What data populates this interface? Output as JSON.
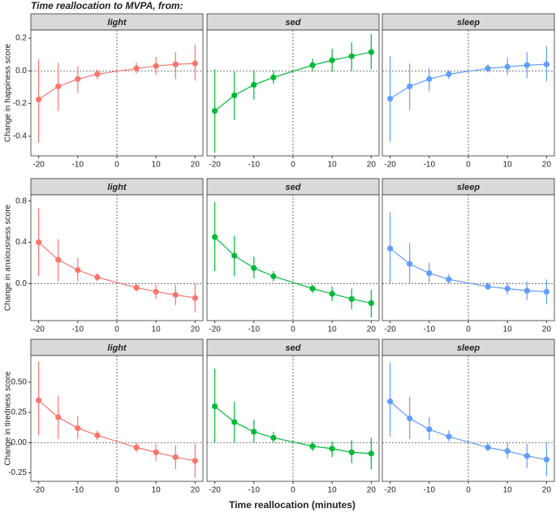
{
  "title": "Time reallocation to MVPA, from:",
  "xlabel": "Time reallocation (minutes)",
  "chart_data": [
    {
      "type": "line",
      "facet": "light",
      "ylabel": "Change in happiness score",
      "x": [
        -20,
        -15,
        -10,
        -5,
        5,
        10,
        15,
        20
      ],
      "series": [
        {
          "color": "#f8766d",
          "values": [
            -0.175,
            -0.095,
            -0.05,
            -0.02,
            0.015,
            0.03,
            0.04,
            0.045
          ],
          "lower": [
            -0.44,
            -0.245,
            -0.135,
            -0.05,
            -0.015,
            -0.025,
            -0.05,
            -0.06
          ],
          "upper": [
            0.07,
            0.05,
            0.03,
            0.01,
            0.05,
            0.085,
            0.115,
            0.16
          ]
        }
      ],
      "xlim": [
        -22,
        22
      ],
      "xticks": [
        -20,
        -10,
        0,
        10,
        20
      ],
      "ylim": [
        -0.52,
        0.25
      ],
      "yticks": [
        {
          "value": -0.4,
          "label": "-0.4"
        },
        {
          "value": -0.2,
          "label": "-0.2"
        },
        {
          "value": 0,
          "label": "0.0"
        },
        0.2
      ],
      "hline": 0,
      "vline": 0
    },
    {
      "type": "line",
      "facet": "sed",
      "x": [
        -20,
        -15,
        -10,
        -5,
        5,
        10,
        15,
        20
      ],
      "series": [
        {
          "color": "#00ba38",
          "values": [
            -0.245,
            -0.15,
            -0.085,
            -0.04,
            0.035,
            0.065,
            0.09,
            0.115
          ],
          "lower": [
            -0.5,
            -0.3,
            -0.175,
            -0.08,
            -0.005,
            -0.005,
            0.0,
            0.01
          ],
          "upper": [
            0.01,
            -0.005,
            0.005,
            0.005,
            0.075,
            0.135,
            0.175,
            0.225
          ]
        }
      ],
      "xlim": [
        -22,
        22
      ],
      "xticks": [
        -20,
        -10,
        0,
        10,
        20
      ],
      "ylim": [
        -0.52,
        0.25
      ],
      "hline": 0,
      "vline": 0
    },
    {
      "type": "line",
      "facet": "sleep",
      "x": [
        -20,
        -15,
        -10,
        -5,
        5,
        10,
        15,
        20
      ],
      "series": [
        {
          "color": "#619cff",
          "values": [
            -0.17,
            -0.095,
            -0.05,
            -0.02,
            0.015,
            0.025,
            0.035,
            0.04
          ],
          "lower": [
            -0.435,
            -0.24,
            -0.125,
            -0.05,
            -0.01,
            -0.025,
            -0.045,
            -0.065
          ],
          "upper": [
            0.09,
            0.045,
            0.02,
            0.005,
            0.04,
            0.08,
            0.115,
            0.15
          ]
        }
      ],
      "xlim": [
        -22,
        22
      ],
      "xticks": [
        -20,
        -10,
        0,
        10,
        20
      ],
      "ylim": [
        -0.52,
        0.25
      ],
      "hline": 0,
      "vline": 0
    },
    {
      "type": "line",
      "facet": "light",
      "ylabel": "Change in anxiousness score",
      "x": [
        -20,
        -15,
        -10,
        -5,
        5,
        10,
        15,
        20
      ],
      "series": [
        {
          "color": "#f8766d",
          "values": [
            0.4,
            0.23,
            0.13,
            0.06,
            -0.04,
            -0.08,
            -0.11,
            -0.14
          ],
          "lower": [
            0.07,
            0.02,
            0.02,
            0.02,
            -0.08,
            -0.15,
            -0.21,
            -0.28
          ],
          "upper": [
            0.73,
            0.43,
            0.25,
            0.1,
            0.0,
            -0.01,
            -0.01,
            0.0
          ]
        }
      ],
      "xlim": [
        -22,
        22
      ],
      "xticks": [
        -20,
        -10,
        0,
        10,
        20
      ],
      "ylim": [
        -0.36,
        0.86
      ],
      "yticks": [
        {
          "value": 0,
          "label": "0.0"
        },
        0.4,
        0.8
      ],
      "hline": 0,
      "vline": 0
    },
    {
      "type": "line",
      "facet": "sed",
      "x": [
        -20,
        -15,
        -10,
        -5,
        5,
        10,
        15,
        20
      ],
      "series": [
        {
          "color": "#00ba38",
          "values": [
            0.45,
            0.27,
            0.15,
            0.07,
            -0.05,
            -0.1,
            -0.15,
            -0.19
          ],
          "lower": [
            0.12,
            0.07,
            0.05,
            0.02,
            -0.09,
            -0.17,
            -0.25,
            -0.33
          ],
          "upper": [
            0.79,
            0.46,
            0.26,
            0.12,
            -0.01,
            -0.03,
            -0.05,
            -0.06
          ]
        }
      ],
      "xlim": [
        -22,
        22
      ],
      "xticks": [
        -20,
        -10,
        0,
        10,
        20
      ],
      "ylim": [
        -0.36,
        0.86
      ],
      "hline": 0,
      "vline": 0
    },
    {
      "type": "line",
      "facet": "sleep",
      "x": [
        -20,
        -15,
        -10,
        -5,
        5,
        10,
        15,
        20
      ],
      "series": [
        {
          "color": "#619cff",
          "values": [
            0.34,
            0.19,
            0.1,
            0.04,
            -0.03,
            -0.05,
            -0.07,
            -0.08
          ],
          "lower": [
            0.0,
            0.0,
            0.01,
            0.0,
            -0.06,
            -0.11,
            -0.16,
            -0.2
          ],
          "upper": [
            0.69,
            0.39,
            0.2,
            0.09,
            0.01,
            0.01,
            0.02,
            0.04
          ]
        }
      ],
      "xlim": [
        -22,
        22
      ],
      "xticks": [
        -20,
        -10,
        0,
        10,
        20
      ],
      "ylim": [
        -0.36,
        0.86
      ],
      "hline": 0,
      "vline": 0
    },
    {
      "type": "line",
      "facet": "light",
      "ylabel": "Change in tiredness score",
      "x": [
        -20,
        -15,
        -10,
        -5,
        5,
        10,
        15,
        20
      ],
      "series": [
        {
          "color": "#f8766d",
          "values": [
            0.35,
            0.21,
            0.12,
            0.06,
            -0.04,
            -0.08,
            -0.12,
            -0.15
          ],
          "lower": [
            0.06,
            0.03,
            0.03,
            0.02,
            -0.08,
            -0.15,
            -0.22,
            -0.29
          ],
          "upper": [
            0.67,
            0.39,
            0.22,
            0.1,
            0.0,
            -0.01,
            -0.02,
            -0.01
          ]
        }
      ],
      "xlim": [
        -22,
        22
      ],
      "xticks": [
        -20,
        -10,
        0,
        10,
        20
      ],
      "ylim": [
        -0.32,
        0.72
      ],
      "yticks": [
        -0.25,
        {
          "value": 0,
          "label": "0.00"
        },
        0.25,
        {
          "value": 0.5,
          "label": "0.50"
        }
      ],
      "hline": 0,
      "vline": 0
    },
    {
      "type": "line",
      "facet": "sed",
      "x": [
        -20,
        -15,
        -10,
        -5,
        5,
        10,
        15,
        20
      ],
      "series": [
        {
          "color": "#00ba38",
          "values": [
            0.3,
            0.17,
            0.09,
            0.04,
            -0.03,
            -0.05,
            -0.08,
            -0.09
          ],
          "lower": [
            0.0,
            0.0,
            0.0,
            0.0,
            -0.07,
            -0.12,
            -0.17,
            -0.22
          ],
          "upper": [
            0.61,
            0.34,
            0.19,
            0.09,
            0.01,
            0.01,
            0.02,
            0.04
          ]
        }
      ],
      "xlim": [
        -22,
        22
      ],
      "xticks": [
        -20,
        -10,
        0,
        10,
        20
      ],
      "ylim": [
        -0.32,
        0.72
      ],
      "hline": 0,
      "vline": 0
    },
    {
      "type": "line",
      "facet": "sleep",
      "x": [
        -20,
        -15,
        -10,
        -5,
        5,
        10,
        15,
        20
      ],
      "series": [
        {
          "color": "#619cff",
          "values": [
            0.34,
            0.2,
            0.11,
            0.05,
            -0.04,
            -0.07,
            -0.11,
            -0.14
          ],
          "lower": [
            0.05,
            0.03,
            0.02,
            0.01,
            -0.07,
            -0.13,
            -0.21,
            -0.28
          ],
          "upper": [
            0.66,
            0.38,
            0.21,
            0.1,
            0.0,
            0.0,
            -0.01,
            0.0
          ]
        }
      ],
      "xlim": [
        -22,
        22
      ],
      "xticks": [
        -20,
        -10,
        0,
        10,
        20
      ],
      "ylim": [
        -0.32,
        0.72
      ],
      "hline": 0,
      "vline": 0
    }
  ]
}
